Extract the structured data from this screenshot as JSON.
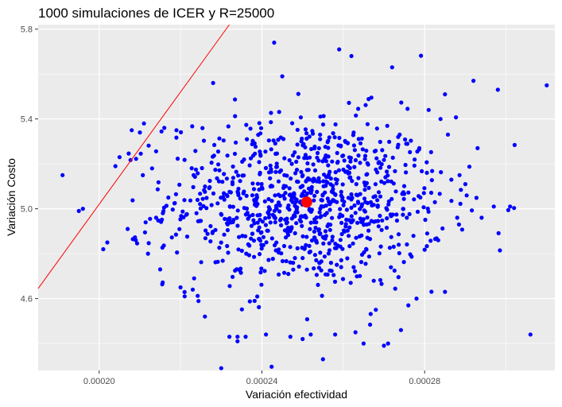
{
  "chart_data": {
    "type": "scatter",
    "title": "1000 simulaciones de ICER y R=25000",
    "xlabel": "Variación efectividad",
    "ylabel": "Variación Costo",
    "xlim": [
      0.000185,
      0.000312
    ],
    "ylim": [
      4.28,
      5.82
    ],
    "x_ticks": [
      0.0002,
      0.00024,
      0.00028
    ],
    "x_tick_labels": [
      "0.00020",
      "0.00024",
      "0.00028"
    ],
    "y_ticks": [
      4.6,
      5.0,
      5.4,
      5.8
    ],
    "y_tick_labels": [
      "4.6",
      "5.0",
      "5.4",
      "5.8"
    ],
    "grid": true,
    "legend": "none",
    "colors": {
      "panel": "#ebebeb",
      "grid": "#ffffff",
      "points": "#0000ff",
      "mean": "#ff0000",
      "threshold": "#ff0000"
    },
    "mean_point": {
      "x": 0.000251,
      "y": 5.03
    },
    "threshold_line": {
      "slope": 25000,
      "points": [
        [
          0.000185,
          4.645
        ],
        [
          0.000232,
          5.82
        ]
      ]
    },
    "n_points": 1000,
    "distribution": {
      "mean_x": 0.000251,
      "sd_x": 1.7e-05,
      "mean_y": 5.03,
      "sd_y": 0.19
    },
    "points": [
      [
        0.000191,
        5.15
      ],
      [
        0.000195,
        4.99
      ],
      [
        0.000196,
        5.0
      ],
      [
        0.000201,
        4.82
      ],
      [
        0.000202,
        4.85
      ],
      [
        0.000204,
        5.19
      ],
      [
        0.000205,
        5.23
      ],
      [
        0.000207,
        4.91
      ],
      [
        0.000208,
        5.35
      ],
      [
        0.000209,
        4.86
      ],
      [
        0.00021,
        5.34
      ],
      [
        0.000211,
        5.38
      ],
      [
        0.000212,
        4.8
      ],
      [
        0.000213,
        5.18
      ],
      [
        0.000214,
        4.96
      ],
      [
        0.000215,
        4.73
      ],
      [
        0.000216,
        5.36
      ],
      [
        0.000217,
        5.05
      ],
      [
        0.000219,
        5.35
      ],
      [
        0.00022,
        4.65
      ],
      [
        0.000221,
        4.61
      ],
      [
        0.000223,
        4.64
      ],
      [
        0.000226,
        4.52
      ],
      [
        0.000228,
        5.56
      ],
      [
        0.00023,
        4.29
      ],
      [
        0.000232,
        4.43
      ],
      [
        0.000234,
        4.41
      ],
      [
        0.000234,
        4.43
      ],
      [
        0.000236,
        4.43
      ],
      [
        0.000241,
        4.44
      ],
      [
        0.000243,
        5.74
      ],
      [
        0.000245,
        5.59
      ],
      [
        0.000247,
        4.43
      ],
      [
        0.00025,
        4.42
      ],
      [
        0.000252,
        4.44
      ],
      [
        0.000255,
        4.33
      ],
      [
        0.000258,
        4.44
      ],
      [
        0.000259,
        5.71
      ],
      [
        0.000262,
        5.68
      ],
      [
        0.000263,
        4.45
      ],
      [
        0.000265,
        4.4
      ],
      [
        0.000268,
        4.55
      ],
      [
        0.00027,
        4.39
      ],
      [
        0.000271,
        4.4
      ],
      [
        0.000272,
        5.63
      ],
      [
        0.000276,
        4.57
      ],
      [
        0.000278,
        4.6
      ],
      [
        0.000281,
        5.44
      ],
      [
        0.000285,
        4.63
      ],
      [
        0.000285,
        5.51
      ],
      [
        0.000288,
        4.96
      ],
      [
        0.00029,
        5.11
      ],
      [
        0.000292,
        5.57
      ],
      [
        0.000293,
        5.27
      ],
      [
        0.000294,
        4.96
      ],
      [
        0.000297,
        5.01
      ],
      [
        0.000298,
        5.53
      ],
      [
        0.000301,
        5.01
      ],
      [
        0.000306,
        4.44
      ],
      [
        0.00031,
        5.55
      ]
    ]
  }
}
